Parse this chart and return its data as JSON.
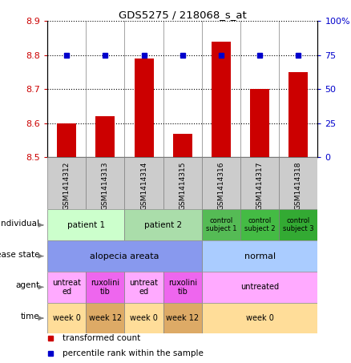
{
  "title": "GDS5275 / 218068_s_at",
  "samples": [
    "GSM1414312",
    "GSM1414313",
    "GSM1414314",
    "GSM1414315",
    "GSM1414316",
    "GSM1414317",
    "GSM1414318"
  ],
  "bar_values": [
    8.6,
    8.62,
    8.79,
    8.57,
    8.84,
    8.7,
    8.75
  ],
  "dot_values": [
    75,
    75,
    75,
    75,
    75,
    75,
    75
  ],
  "ylim_left": [
    8.5,
    8.9
  ],
  "ylim_right": [
    0,
    100
  ],
  "yticks_left": [
    8.5,
    8.6,
    8.7,
    8.8,
    8.9
  ],
  "yticks_right": [
    0,
    25,
    50,
    75,
    100
  ],
  "ytick_labels_right": [
    "0",
    "25",
    "50",
    "75",
    "100%"
  ],
  "bar_color": "#cc0000",
  "dot_color": "#0000cc",
  "bar_bottom": 8.5,
  "sample_bg": "#cccccc",
  "annotation_rows": [
    {
      "label": "individual",
      "cells": [
        {
          "text": "patient 1",
          "span": 2,
          "color": "#ccffcc",
          "fontsize": 7.5
        },
        {
          "text": "patient 2",
          "span": 2,
          "color": "#aaddaa",
          "fontsize": 7.5
        },
        {
          "text": "control\nsubject 1",
          "span": 1,
          "color": "#55bb55",
          "fontsize": 6
        },
        {
          "text": "control\nsubject 2",
          "span": 1,
          "color": "#44bb44",
          "fontsize": 6
        },
        {
          "text": "control\nsubject 3",
          "span": 1,
          "color": "#33aa33",
          "fontsize": 6
        }
      ]
    },
    {
      "label": "disease state",
      "cells": [
        {
          "text": "alopecia areata",
          "span": 4,
          "color": "#8899ee",
          "fontsize": 8
        },
        {
          "text": "normal",
          "span": 3,
          "color": "#aaccff",
          "fontsize": 8
        }
      ]
    },
    {
      "label": "agent",
      "cells": [
        {
          "text": "untreat\ned",
          "span": 1,
          "color": "#ffaaff",
          "fontsize": 7
        },
        {
          "text": "ruxolini\ntib",
          "span": 1,
          "color": "#ee66ee",
          "fontsize": 7
        },
        {
          "text": "untreat\ned",
          "span": 1,
          "color": "#ffaaff",
          "fontsize": 7
        },
        {
          "text": "ruxolini\ntib",
          "span": 1,
          "color": "#ee66ee",
          "fontsize": 7
        },
        {
          "text": "untreated",
          "span": 3,
          "color": "#ffaaff",
          "fontsize": 7
        }
      ]
    },
    {
      "label": "time",
      "cells": [
        {
          "text": "week 0",
          "span": 1,
          "color": "#ffdd99",
          "fontsize": 7
        },
        {
          "text": "week 12",
          "span": 1,
          "color": "#ddaa66",
          "fontsize": 7
        },
        {
          "text": "week 0",
          "span": 1,
          "color": "#ffdd99",
          "fontsize": 7
        },
        {
          "text": "week 12",
          "span": 1,
          "color": "#ddaa66",
          "fontsize": 7
        },
        {
          "text": "week 0",
          "span": 3,
          "color": "#ffdd99",
          "fontsize": 7
        }
      ]
    }
  ],
  "legend_items": [
    {
      "label": "transformed count",
      "color": "#cc0000",
      "marker": "s"
    },
    {
      "label": "percentile rank within the sample",
      "color": "#0000cc",
      "marker": "s"
    }
  ]
}
